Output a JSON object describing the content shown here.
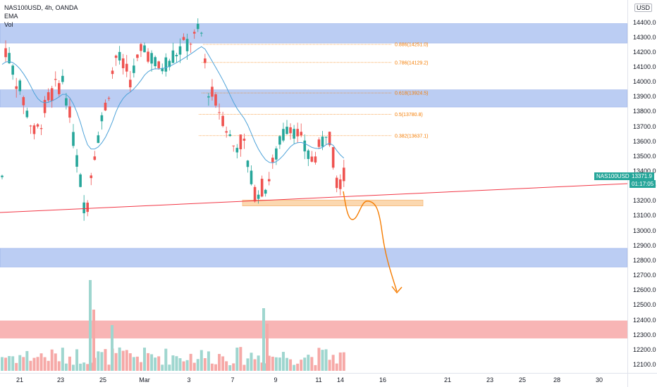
{
  "legend": {
    "title": "NAS100USD, 4h, OANDA",
    "indicator_1": "EMA",
    "indicator_2": "Vol"
  },
  "currency_button": "USD",
  "price_scale": {
    "ticks": [
      "14400.0",
      "14300.0",
      "14200.0",
      "14100.0",
      "14000.0",
      "13900.0",
      "13800.0",
      "13700.0",
      "13600.0",
      "13500.0",
      "13400.0",
      "13300.0",
      "13200.0",
      "13100.0",
      "13000.0",
      "12900.0",
      "12800.0",
      "12700.0",
      "12600.0",
      "12500.0",
      "12400.0",
      "12300.0",
      "12200.0",
      "12100.0"
    ]
  },
  "time_scale": {
    "ticks": [
      "21",
      "23",
      "25",
      "Mar",
      "3",
      "7",
      "9",
      "11",
      "14",
      "16",
      "21",
      "23",
      "25",
      "28",
      "30"
    ]
  },
  "current_price": {
    "symbol": "NAS100USD",
    "price": "13371.9",
    "countdown": "01:17:05"
  },
  "fib_levels": [
    {
      "label": "0.886(14251.0)",
      "price": 14251.0
    },
    {
      "label": "0.786(14129.2)",
      "price": 14129.2
    },
    {
      "label": "0.618(13924.5)",
      "price": 13924.5
    },
    {
      "label": "0.5(13780.8)",
      "price": 13780.8
    },
    {
      "label": "0.382(13637.1)",
      "price": 13637.1
    }
  ],
  "zones": [
    {
      "name": "supply-zone-top",
      "top": 14390,
      "bottom": 14260,
      "color": "#bbcdf3"
    },
    {
      "name": "supply-zone-mid",
      "top": 13945,
      "bottom": 13830,
      "color": "#bbcdf3"
    },
    {
      "name": "demand-zone-low",
      "top": 12880,
      "bottom": 12755,
      "color": "#bbcdf3"
    },
    {
      "name": "target-zone-red",
      "top": 12395,
      "bottom": 12275,
      "color": "#f8b5b5"
    },
    {
      "name": "support-zone-orange",
      "top": 13205,
      "bottom": 13165,
      "color": "#fbd8b0"
    }
  ],
  "colors": {
    "up": "#26a69a",
    "down": "#ef5350",
    "ema": "#4fa3d9",
    "trendline": "#f23645",
    "projection": "#f57c00",
    "badge": "#26a69a"
  }
}
